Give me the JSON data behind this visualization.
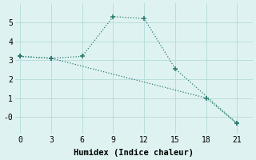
{
  "xlabel": "Humidex (Indice chaleur)",
  "line1_x": [
    0,
    3,
    6,
    9,
    12,
    15,
    21
  ],
  "line1_y": [
    3.2,
    3.1,
    3.2,
    5.3,
    5.2,
    2.55,
    -0.35
  ],
  "line2_x": [
    0,
    3,
    18,
    21
  ],
  "line2_y": [
    3.2,
    3.1,
    1.0,
    -0.35
  ],
  "line_color": "#2a7a6e",
  "bg_color": "#dff2f2",
  "grid_color": "#b8dede",
  "xlim": [
    -0.5,
    22.5
  ],
  "ylim": [
    -0.9,
    6.0
  ],
  "xticks": [
    0,
    3,
    6,
    9,
    12,
    15,
    18,
    21
  ],
  "yticks": [
    0,
    1,
    2,
    3,
    4,
    5
  ],
  "ytick_labels": [
    "-0",
    "1",
    "2",
    "3",
    "4",
    "5"
  ],
  "tick_fontsize": 7,
  "xlabel_fontsize": 7.5
}
